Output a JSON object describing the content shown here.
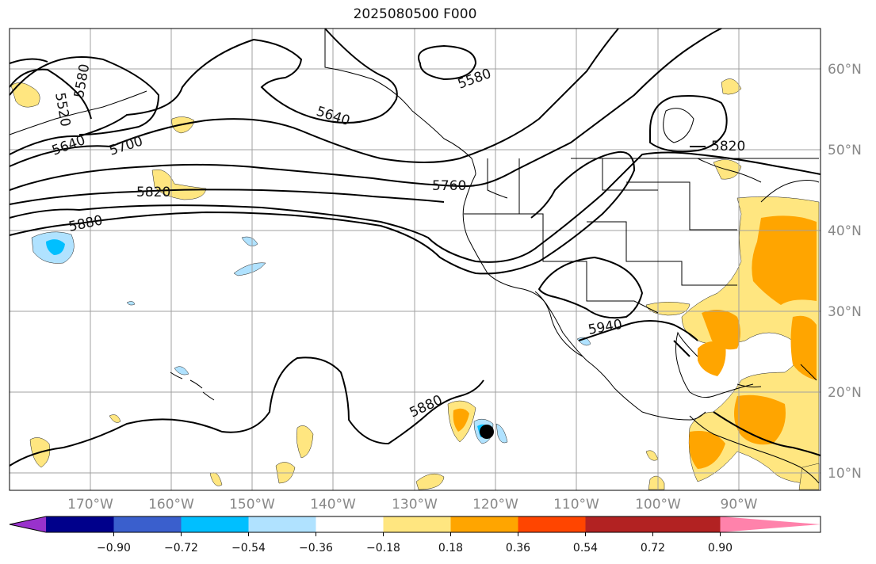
{
  "title": "2025080500 F000",
  "map": {
    "lon_labels": [
      "170°W",
      "160°W",
      "150°W",
      "140°W",
      "130°W",
      "120°W",
      "110°W",
      "100°W",
      "90°W"
    ],
    "lat_labels": [
      "60°N",
      "50°N",
      "40°N",
      "30°N",
      "20°N",
      "10°N"
    ],
    "contour_labels": [
      "5520",
      "5580",
      "5640",
      "5700",
      "5820",
      "5880",
      "5640",
      "5580",
      "5760",
      "5820",
      "5940",
      "5880"
    ],
    "storm_marker": "storm-center"
  },
  "colorbar": {
    "ticks": [
      "−0.90",
      "−0.72",
      "−0.54",
      "−0.36",
      "−0.18",
      "0.18",
      "0.36",
      "0.54",
      "0.72",
      "0.90"
    ],
    "colors": [
      "#9932cc",
      "#00008b",
      "#3a5fcd",
      "#00bfff",
      "#b0e2ff",
      "#ffffff",
      "#ffe680",
      "#ffa500",
      "#ff4500",
      "#b22222",
      "#ff82ab"
    ]
  }
}
